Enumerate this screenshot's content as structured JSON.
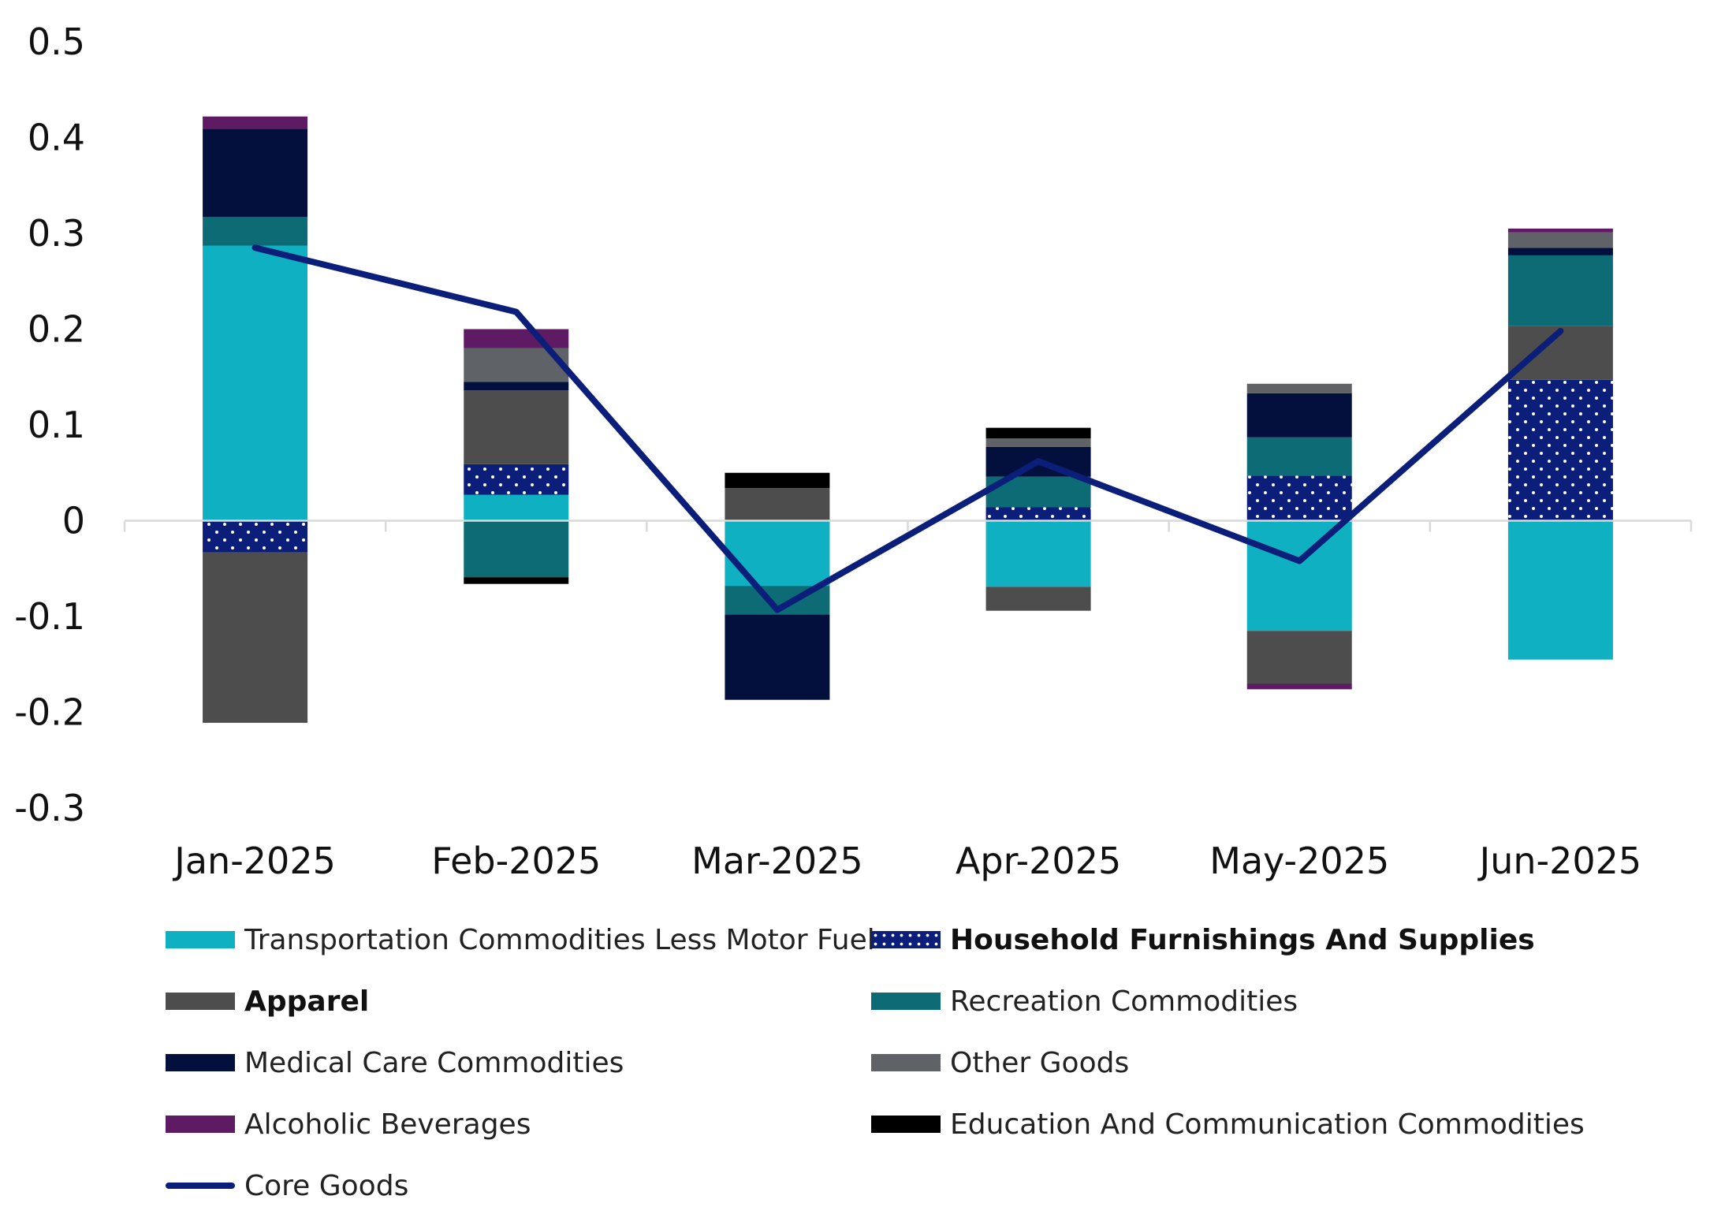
{
  "chart_data": {
    "type": "bar",
    "stacked": true,
    "categories": [
      "Jan-2025",
      "Feb-2025",
      "Mar-2025",
      "Apr-2025",
      "May-2025",
      "Jun-2025"
    ],
    "ylim": [
      -0.3,
      0.5
    ],
    "yticks": [
      {
        "value": 0.5,
        "label": "0.5"
      },
      {
        "value": 0.4,
        "label": "0.4"
      },
      {
        "value": 0.3,
        "label": "0.3"
      },
      {
        "value": 0.2,
        "label": "0.2"
      },
      {
        "value": 0.1,
        "label": "0.1"
      },
      {
        "value": 0,
        "label": "0"
      },
      {
        "value": -0.1,
        "label": "-0.1"
      },
      {
        "value": -0.2,
        "label": "-0.2"
      },
      {
        "value": -0.3,
        "label": "-0.3"
      }
    ],
    "series": [
      {
        "name": "Transportation Commodities Less Motor Fuel",
        "color": "#0fb0c1",
        "pattern": "solid",
        "bold_label": false,
        "values": [
          0.287,
          0.027,
          -0.068,
          -0.069,
          -0.115,
          -0.145
        ]
      },
      {
        "name": "Household Furnishings And Supplies",
        "color": "#0b1f7a",
        "pattern": "dots",
        "bold_label": true,
        "values": [
          -0.033,
          0.032,
          0.0,
          0.014,
          0.047,
          0.147
        ]
      },
      {
        "name": "Apparel",
        "color": "#4d4d4d",
        "pattern": "solid",
        "bold_label": true,
        "values": [
          -0.178,
          0.077,
          0.034,
          -0.025,
          -0.055,
          0.056
        ]
      },
      {
        "name": "Recreation Commodities",
        "color": "#0d6b75",
        "pattern": "solid",
        "bold_label": false,
        "values": [
          0.03,
          -0.059,
          -0.03,
          0.032,
          0.04,
          0.074
        ]
      },
      {
        "name": "Medical Care Commodities",
        "color": "#03103d",
        "pattern": "solid",
        "bold_label": false,
        "values": [
          0.092,
          0.009,
          -0.089,
          0.031,
          0.046,
          0.008
        ]
      },
      {
        "name": "Other Goods",
        "color": "#5f6367",
        "pattern": "solid",
        "bold_label": false,
        "values": [
          0.0,
          0.035,
          0.0,
          0.009,
          0.01,
          0.016
        ]
      },
      {
        "name": "Alcoholic Beverages",
        "color": "#5e1a63",
        "pattern": "solid",
        "bold_label": false,
        "values": [
          0.013,
          0.02,
          0.0,
          0.0,
          -0.006,
          0.004
        ]
      },
      {
        "name": "Education And Communication Commodities",
        "color": "#000000",
        "pattern": "solid",
        "bold_label": false,
        "values": [
          0.0,
          -0.007,
          0.016,
          0.011,
          0.0,
          0.0
        ]
      }
    ],
    "line": {
      "name": "Core Goods",
      "color": "#0b1f7a",
      "values": [
        0.285,
        0.218,
        -0.093,
        0.062,
        -0.042,
        0.198
      ]
    },
    "legend_position": "bottom",
    "grid": false
  }
}
